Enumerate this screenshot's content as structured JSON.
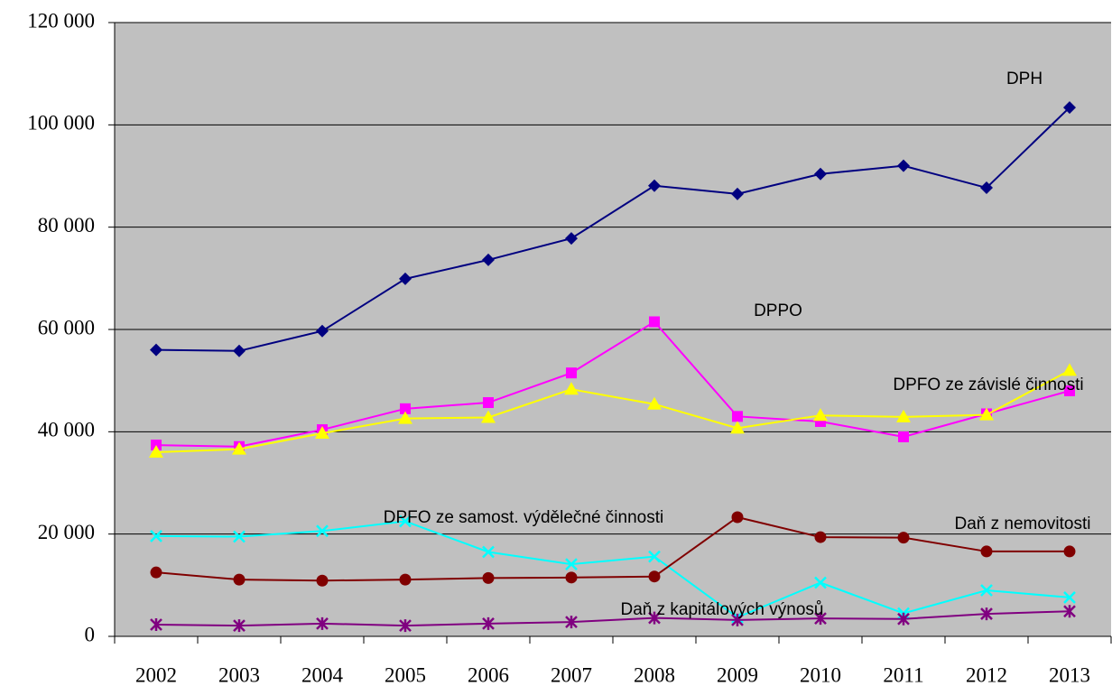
{
  "chart_data": {
    "type": "line",
    "categories": [
      "2002",
      "2003",
      "2004",
      "2005",
      "2006",
      "2007",
      "2008",
      "2009",
      "2010",
      "2011",
      "2012",
      "2013"
    ],
    "series": [
      {
        "name": "DPH",
        "color": "#000080",
        "marker": "diamond",
        "values": [
          56000,
          55800,
          59700,
          69900,
          73600,
          77800,
          88100,
          86500,
          90400,
          92000,
          87700,
          103400
        ]
      },
      {
        "name": "DPPO",
        "color": "#ff00ff",
        "marker": "square",
        "values": [
          37400,
          37100,
          40400,
          44500,
          45700,
          51500,
          61500,
          43000,
          42000,
          39000,
          43500,
          48000
        ]
      },
      {
        "name": "DPFO ze závislé činnosti",
        "color": "#ffff00",
        "marker": "triangle",
        "values": [
          36000,
          36600,
          39700,
          42600,
          42800,
          48300,
          45400,
          40700,
          43200,
          42900,
          43300,
          52000
        ]
      },
      {
        "name": "DPFO ze samost. výdělečné činnosti",
        "color": "#00ffff",
        "marker": "x",
        "values": [
          19600,
          19500,
          20600,
          22500,
          16500,
          14100,
          15600,
          3700,
          10500,
          4500,
          9000,
          7600
        ]
      },
      {
        "name": "Daň z nemovitosti",
        "color": "#800000",
        "marker": "circle",
        "values": [
          12500,
          11100,
          10900,
          11100,
          11400,
          11500,
          11700,
          23300,
          19400,
          19300,
          16600,
          16600
        ]
      },
      {
        "name": "Daň z kapitálových výnosů",
        "color": "#800080",
        "marker": "asterisk",
        "values": [
          2300,
          2100,
          2500,
          2100,
          2500,
          2800,
          3600,
          3200,
          3500,
          3400,
          4400,
          4900
        ]
      }
    ],
    "ylim": [
      0,
      120000
    ],
    "yticks": [
      0,
      {
        "value": 20000,
        "label": "20 000"
      },
      {
        "value": 40000,
        "label": "40 000"
      },
      {
        "value": 60000,
        "label": "60 000"
      },
      {
        "value": 80000,
        "label": "80 000"
      },
      {
        "value": 100000,
        "label": "100 000"
      },
      {
        "value": 120000,
        "label": "120 000"
      }
    ],
    "grid": true
  }
}
